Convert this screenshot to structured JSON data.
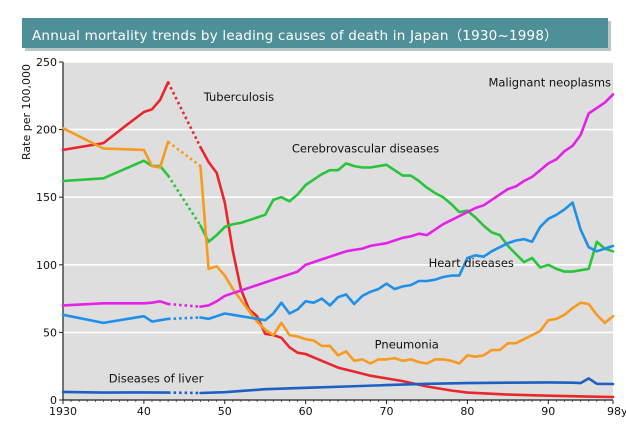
{
  "chart_data": {
    "type": "line",
    "title": "Annual mortality trends by leading causes of death in Japan（1930~1998）",
    "ylabel": "Rate per 100,000",
    "xlabel": "year",
    "xlim": [
      1930,
      1998
    ],
    "ylim": [
      0,
      250
    ],
    "xticks": [
      {
        "value": 1930,
        "label": "1930"
      },
      {
        "value": 1940,
        "label": "40"
      },
      {
        "value": 1950,
        "label": "50"
      },
      {
        "value": 1960,
        "label": "60"
      },
      {
        "value": 1970,
        "label": "70"
      },
      {
        "value": 1980,
        "label": "80"
      },
      {
        "value": 1990,
        "label": "90"
      },
      {
        "value": 1998,
        "label": "98year"
      }
    ],
    "yticks": [
      0,
      50,
      100,
      150,
      200,
      250
    ],
    "gap": [
      1943,
      1947
    ],
    "series": [
      {
        "name": "Tuberculosis",
        "color": "#e8262b",
        "x": [
          1930,
          1935,
          1938,
          1940,
          1941,
          1942,
          1943,
          1947,
          1948,
          1949,
          1950,
          1951,
          1952,
          1953,
          1954,
          1955,
          1956,
          1957,
          1958,
          1959,
          1960,
          1962,
          1964,
          1966,
          1968,
          1970,
          1972,
          1975,
          1978,
          1980,
          1985,
          1990,
          1995,
          1998
        ],
        "y": [
          185,
          190,
          204,
          213,
          215,
          222,
          235,
          187,
          176,
          168,
          146,
          110,
          82,
          67,
          62,
          49,
          48,
          46,
          39,
          35,
          34,
          29,
          24,
          21,
          18,
          16,
          14,
          10,
          7,
          5.5,
          4,
          3.2,
          2.5,
          2.2
        ]
      },
      {
        "name": "Cerebrovascular diseases",
        "color": "#28c43a",
        "x": [
          1930,
          1935,
          1940,
          1941,
          1942,
          1943,
          1947,
          1948,
          1949,
          1950,
          1951,
          1952,
          1953,
          1954,
          1955,
          1956,
          1957,
          1958,
          1959,
          1960,
          1961,
          1962,
          1963,
          1964,
          1965,
          1966,
          1967,
          1968,
          1969,
          1970,
          1971,
          1972,
          1973,
          1974,
          1975,
          1976,
          1977,
          1978,
          1979,
          1980,
          1981,
          1982,
          1983,
          1984,
          1985,
          1986,
          1987,
          1988,
          1989,
          1990,
          1991,
          1992,
          1993,
          1994,
          1995,
          1996,
          1997,
          1998
        ],
        "y": [
          162,
          164,
          177,
          173,
          173,
          166,
          129,
          117,
          122,
          128,
          130,
          131,
          133,
          135,
          137,
          148,
          150,
          147,
          152,
          159,
          163,
          167,
          170,
          170,
          175,
          173,
          172,
          172,
          173,
          174,
          170,
          166,
          166,
          162,
          157,
          153,
          150,
          145,
          139,
          140,
          135,
          129,
          124,
          122,
          114,
          108,
          102,
          105,
          98,
          100,
          97,
          95,
          95,
          96,
          97,
          117,
          112,
          110
        ]
      },
      {
        "name": "Pneumonia",
        "color": "#f79a1d",
        "x": [
          1930,
          1935,
          1940,
          1941,
          1942,
          1943,
          1947,
          1948,
          1949,
          1950,
          1951,
          1952,
          1953,
          1954,
          1955,
          1956,
          1957,
          1958,
          1959,
          1960,
          1961,
          1962,
          1963,
          1964,
          1965,
          1966,
          1967,
          1968,
          1969,
          1970,
          1971,
          1972,
          1973,
          1974,
          1975,
          1976,
          1977,
          1978,
          1979,
          1980,
          1981,
          1982,
          1983,
          1984,
          1985,
          1986,
          1987,
          1988,
          1989,
          1990,
          1991,
          1992,
          1993,
          1994,
          1995,
          1996,
          1997,
          1998
        ],
        "y": [
          201,
          186,
          185,
          173,
          172,
          191,
          173,
          97,
          99,
          92,
          82,
          74,
          66,
          58,
          52,
          48,
          57,
          48,
          47,
          45,
          44,
          40,
          40,
          33,
          36,
          29,
          30,
          27,
          30,
          30,
          31,
          29,
          30,
          28,
          27,
          30,
          30,
          29,
          27,
          33,
          32,
          33,
          37,
          37,
          42,
          42,
          45,
          48,
          51,
          59,
          60,
          63,
          68,
          72,
          71,
          63,
          57,
          62
        ]
      },
      {
        "name": "Heart diseases",
        "color": "#1e90e8",
        "x": [
          1930,
          1935,
          1940,
          1941,
          1942,
          1943,
          1947,
          1948,
          1949,
          1950,
          1951,
          1952,
          1953,
          1954,
          1955,
          1956,
          1957,
          1958,
          1959,
          1960,
          1961,
          1962,
          1963,
          1964,
          1965,
          1966,
          1967,
          1968,
          1969,
          1970,
          1971,
          1972,
          1973,
          1974,
          1975,
          1976,
          1977,
          1978,
          1979,
          1980,
          1981,
          1982,
          1983,
          1984,
          1985,
          1986,
          1987,
          1988,
          1989,
          1990,
          1991,
          1992,
          1993,
          1994,
          1995,
          1996,
          1997,
          1998
        ],
        "y": [
          63,
          57,
          62,
          58,
          59,
          60,
          61,
          60,
          62,
          64,
          63,
          62,
          61,
          60,
          59,
          64,
          72,
          64,
          67,
          73,
          72,
          75,
          70,
          76,
          78,
          71,
          77,
          80,
          82,
          86,
          82,
          84,
          85,
          88,
          88,
          89,
          91,
          92,
          92,
          105,
          107,
          106,
          110,
          113,
          116,
          118,
          119,
          117,
          128,
          134,
          137,
          141,
          146,
          126,
          113,
          110,
          112,
          114
        ]
      },
      {
        "name": "Malignant neoplasms",
        "color": "#e222e8",
        "x": [
          1930,
          1935,
          1940,
          1941,
          1942,
          1943,
          1947,
          1948,
          1949,
          1950,
          1951,
          1952,
          1953,
          1954,
          1955,
          1956,
          1957,
          1958,
          1959,
          1960,
          1961,
          1962,
          1963,
          1964,
          1965,
          1966,
          1967,
          1968,
          1969,
          1970,
          1971,
          1972,
          1973,
          1974,
          1975,
          1976,
          1977,
          1978,
          1979,
          1980,
          1981,
          1982,
          1983,
          1984,
          1985,
          1986,
          1987,
          1988,
          1989,
          1990,
          1991,
          1992,
          1993,
          1994,
          1995,
          1996,
          1997,
          1998
        ],
        "y": [
          70,
          71.5,
          71.5,
          72,
          73,
          71,
          69,
          70,
          73,
          77,
          79,
          81,
          83,
          85,
          87,
          89,
          91,
          93,
          95,
          100,
          102,
          104,
          106,
          108,
          110,
          111,
          112,
          114,
          115,
          116,
          118,
          120,
          121,
          123,
          122,
          126,
          130,
          133,
          136,
          139,
          142,
          144,
          148,
          152,
          156,
          158,
          162,
          165,
          170,
          175,
          178,
          184,
          188,
          196,
          212,
          216,
          220,
          226
        ]
      },
      {
        "name": "Diseases of liver",
        "color": "#1e5fc4",
        "x": [
          1930,
          1935,
          1940,
          1943,
          1947,
          1950,
          1955,
          1960,
          1965,
          1970,
          1975,
          1980,
          1985,
          1990,
          1993,
          1994,
          1995,
          1996,
          1998
        ],
        "y": [
          6,
          5.5,
          5.6,
          5.5,
          5.2,
          5.8,
          8,
          9,
          10,
          11,
          12,
          12.5,
          12.8,
          13,
          12.8,
          12.5,
          16,
          12,
          11.8
        ]
      }
    ],
    "labels": [
      {
        "text": "Tuberculosis",
        "series": "Tuberculosis"
      },
      {
        "text": "Cerebrovascular diseases",
        "series": "Cerebrovascular diseases"
      },
      {
        "text": "Malignant neoplasms",
        "series": "Malignant neoplasms"
      },
      {
        "text": "Heart diseases",
        "series": "Heart diseases"
      },
      {
        "text": "Pneumonia",
        "series": "Pneumonia"
      },
      {
        "text": "Diseases of liver",
        "series": "Diseases of liver"
      }
    ]
  }
}
